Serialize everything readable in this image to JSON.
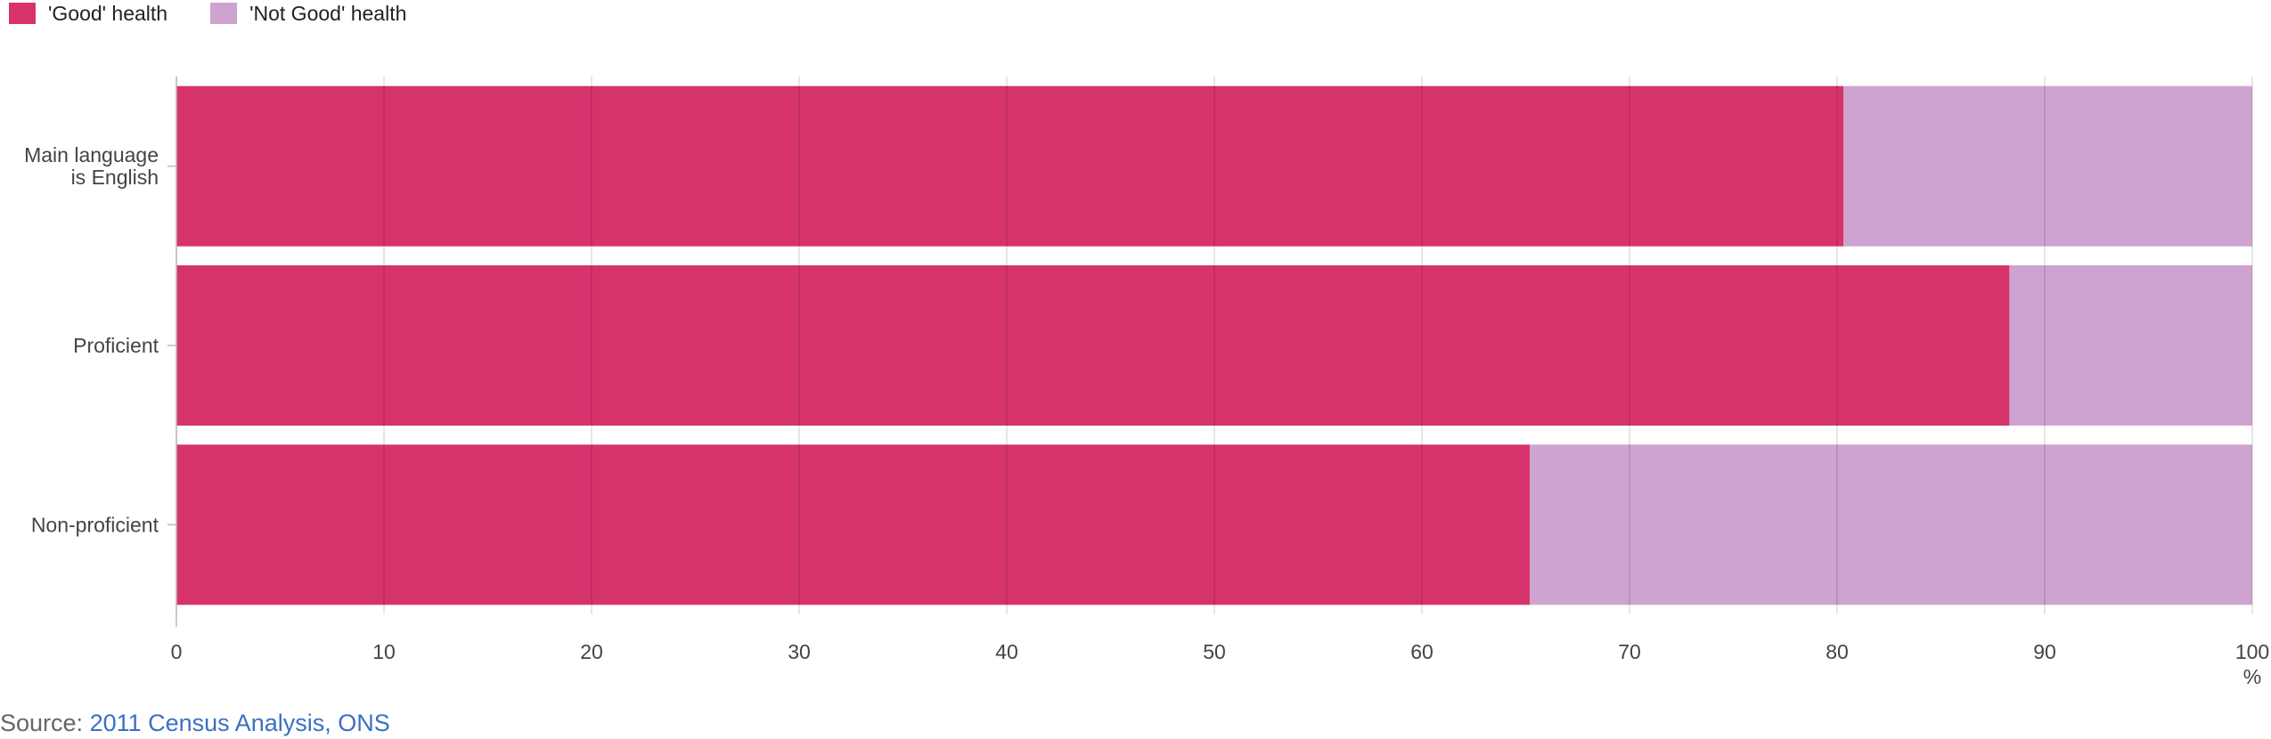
{
  "legend": {
    "items": [
      {
        "label": "'Good' health",
        "color": "#d6336c"
      },
      {
        "label": "'Not Good' health",
        "color": "#cfa3cf"
      }
    ]
  },
  "source": {
    "prefix": "Source: ",
    "link_text": "2011 Census Analysis, ONS"
  },
  "chart_data": {
    "type": "bar",
    "orientation": "horizontal",
    "stacked": true,
    "categories": [
      "Main language is English",
      "Proficient",
      "Non-proficient"
    ],
    "category_lines": [
      [
        "Main language",
        "is English"
      ],
      [
        "Proficient"
      ],
      [
        "Non-proficient"
      ]
    ],
    "series": [
      {
        "name": "'Good' health",
        "color": "#d6336c",
        "values": [
          80.3,
          88.3,
          65.2
        ]
      },
      {
        "name": "'Not Good' health",
        "color": "#cfa3cf",
        "values": [
          19.7,
          11.7,
          34.8
        ]
      }
    ],
    "xlim": [
      0,
      100
    ],
    "xticks": [
      0,
      10,
      20,
      30,
      40,
      50,
      60,
      70,
      80,
      90,
      100
    ],
    "xunit": "%",
    "grid": true,
    "legend_position": "top-left"
  }
}
